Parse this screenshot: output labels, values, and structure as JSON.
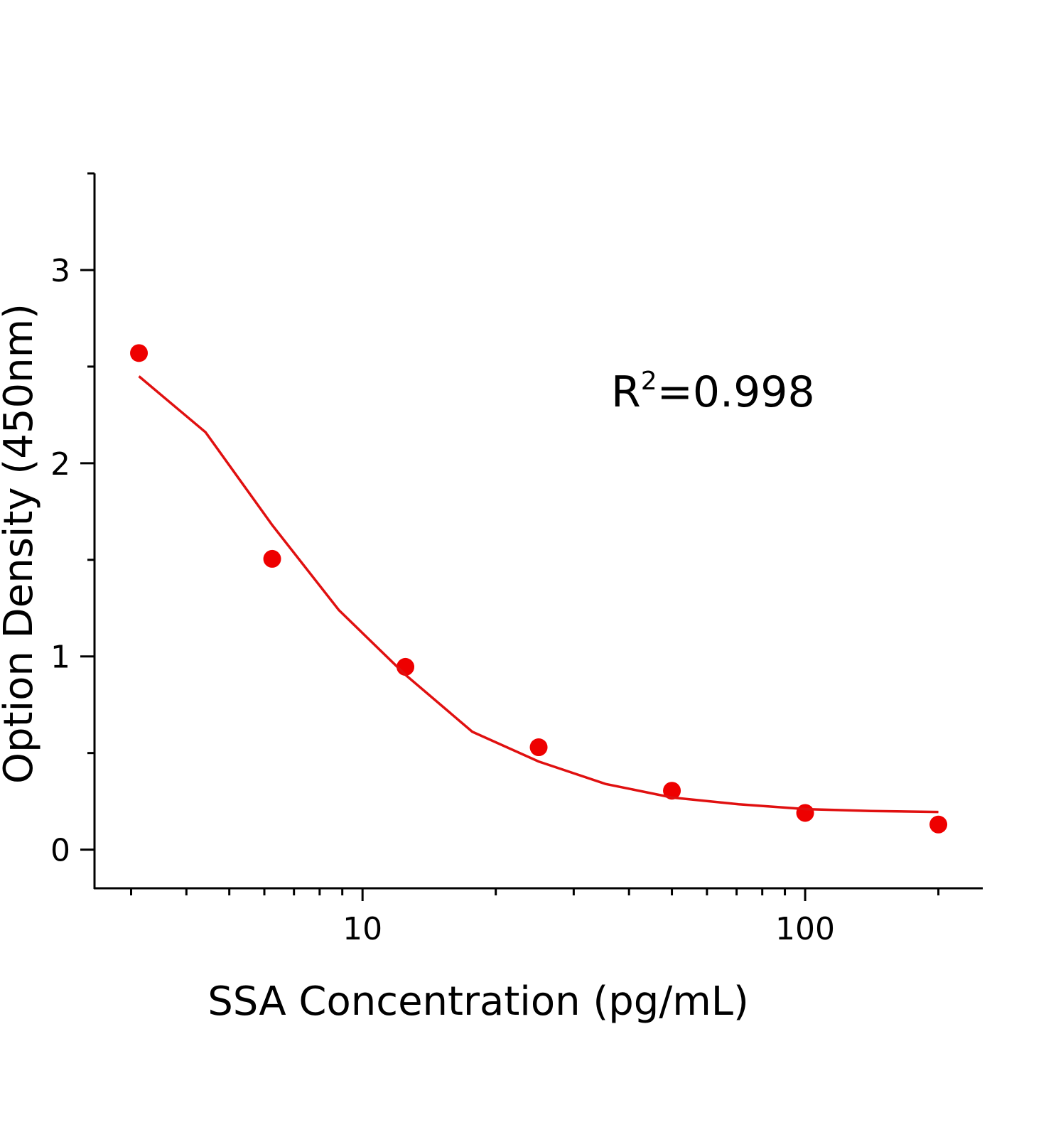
{
  "chart_data": {
    "type": "scatter",
    "x_label": "SSA Concentration (pg/mL)",
    "y_label": "Option Density (450nm)",
    "annotation": {
      "base": "R",
      "sup": "2",
      "rest": "=0.998"
    },
    "xscale": "log",
    "xlim": [
      2.48,
      251
    ],
    "xticks": [
      10,
      100
    ],
    "xminorticks": [
      3,
      4,
      5,
      6,
      7,
      8,
      9,
      20,
      30,
      40,
      50,
      60,
      70,
      80,
      90,
      200
    ],
    "ylim": [
      -0.2,
      3.5
    ],
    "yticks": [
      0,
      1,
      2,
      3
    ],
    "yminorticks": [
      0.5,
      1.5,
      2.5,
      3.5
    ],
    "series": [
      {
        "kind": "points",
        "color": "#ee0000",
        "x": [
          3.125,
          6.25,
          12.5,
          25,
          50,
          100,
          200
        ],
        "values": [
          2.57,
          1.505,
          0.946,
          0.53,
          0.305,
          0.19,
          0.13
        ]
      },
      {
        "kind": "line",
        "color": "#e01010",
        "x": [
          3.125,
          4.42,
          6.25,
          8.84,
          12.5,
          17.7,
          25,
          35.4,
          50,
          70.7,
          100,
          141,
          200
        ],
        "values": [
          2.45,
          2.16,
          1.68,
          1.24,
          0.905,
          0.61,
          0.456,
          0.34,
          0.27,
          0.235,
          0.21,
          0.2,
          0.195
        ]
      }
    ]
  }
}
